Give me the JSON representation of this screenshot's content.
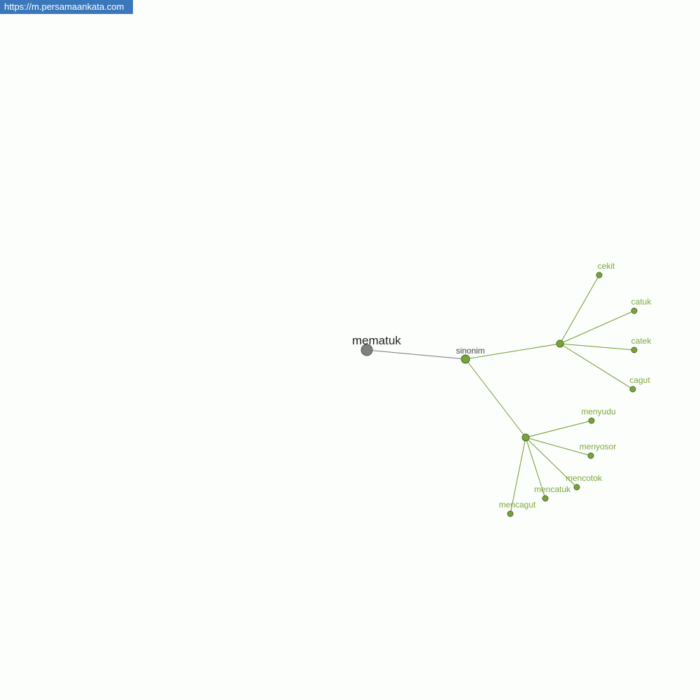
{
  "banner": {
    "url": "https://m.persamaankata.com"
  },
  "graph": {
    "root": "mematuk",
    "relation": "sinonim",
    "colors": {
      "root": "#808080",
      "node": "#76a33a",
      "edge": "#6f9a2e",
      "label": "#7aa83a",
      "relation_label": "#444444",
      "root_label": "#222222"
    },
    "groups": [
      {
        "words": [
          "cekit",
          "catuk",
          "catek",
          "cagut"
        ]
      },
      {
        "words": [
          "menyudu",
          "menyosor",
          "mencotok",
          "mencatuk",
          "mencagut"
        ]
      }
    ]
  }
}
